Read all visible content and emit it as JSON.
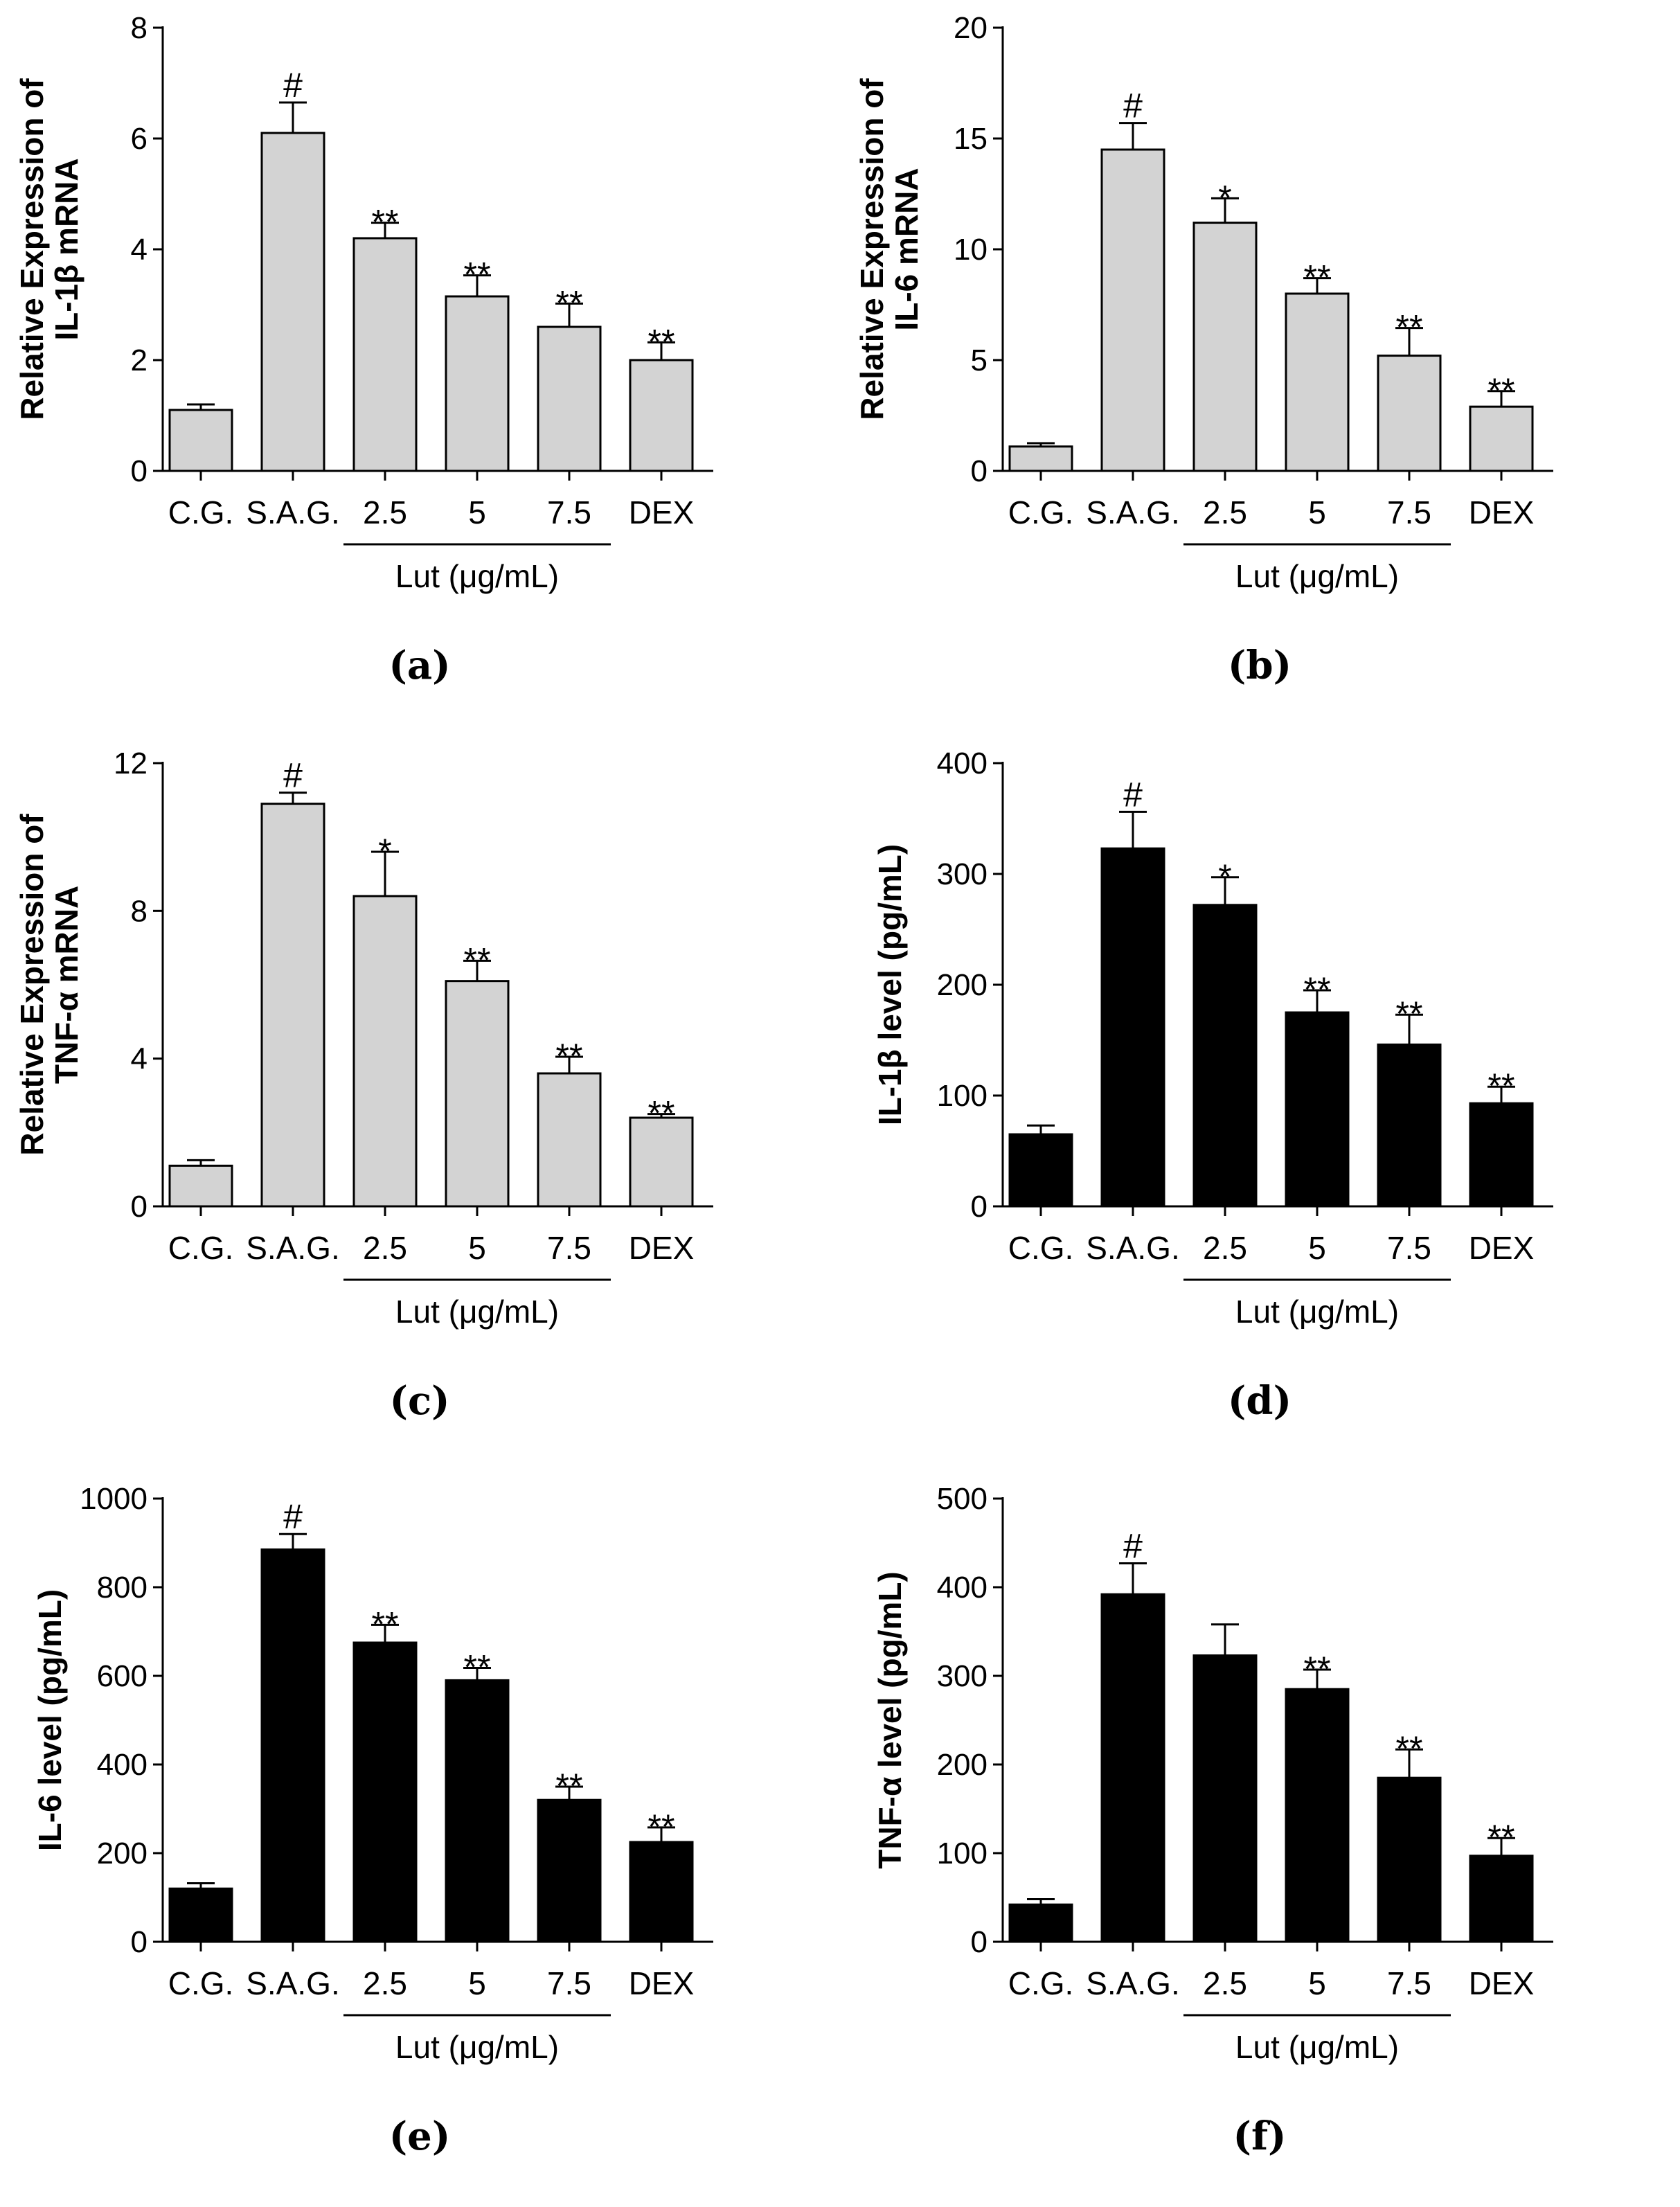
{
  "chart_data": [
    {
      "type": "bar",
      "panel": "(a)",
      "ylabel_lines": [
        "Relative Expression of",
        "IL-1β mRNA"
      ],
      "categories": [
        "C.G.",
        "S.A.G.",
        "2.5",
        "5",
        "7.5",
        "DEX"
      ],
      "group_label": "Lut (μg/mL)",
      "values": [
        1.1,
        6.1,
        4.2,
        3.15,
        2.6,
        2.0
      ],
      "errors": [
        0.1,
        0.55,
        0.28,
        0.38,
        0.42,
        0.32
      ],
      "significance": [
        "",
        "#",
        "**",
        "**",
        "**",
        "**"
      ],
      "yticks": [
        0,
        2,
        4,
        6,
        8
      ],
      "ylim": [
        0,
        8
      ],
      "bar_color": "#d3d3d3"
    },
    {
      "type": "bar",
      "panel": "(b)",
      "ylabel_lines": [
        "Relative Expression of",
        "IL-6 mRNA"
      ],
      "categories": [
        "C.G.",
        "S.A.G.",
        "2.5",
        "5",
        "7.5",
        "DEX"
      ],
      "group_label": "Lut (μg/mL)",
      "values": [
        1.1,
        14.5,
        11.2,
        8.0,
        5.2,
        2.9
      ],
      "errors": [
        0.15,
        1.2,
        1.1,
        0.7,
        1.25,
        0.7
      ],
      "significance": [
        "",
        "#",
        "*",
        "**",
        "**",
        "**"
      ],
      "yticks": [
        0,
        5,
        10,
        15,
        20
      ],
      "ylim": [
        0,
        20
      ],
      "bar_color": "#d3d3d3"
    },
    {
      "type": "bar",
      "panel": "(c)",
      "ylabel_lines": [
        "Relative Expression of",
        "TNF-α mRNA"
      ],
      "categories": [
        "C.G.",
        "S.A.G.",
        "2.5",
        "5",
        "7.5",
        "DEX"
      ],
      "group_label": "Lut (μg/mL)",
      "values": [
        1.1,
        10.9,
        8.4,
        6.1,
        3.6,
        2.4
      ],
      "errors": [
        0.15,
        0.3,
        1.2,
        0.55,
        0.45,
        0.1
      ],
      "significance": [
        "",
        "#",
        "*",
        "**",
        "**",
        "**"
      ],
      "yticks": [
        0,
        4,
        8,
        12
      ],
      "ylim": [
        0,
        12
      ],
      "bar_color": "#d3d3d3"
    },
    {
      "type": "bar",
      "panel": "(d)",
      "ylabel_lines": [
        "IL-1β level (pg/mL)"
      ],
      "categories": [
        "C.G.",
        "S.A.G.",
        "2.5",
        "5",
        "7.5",
        "DEX"
      ],
      "group_label": "Lut (μg/mL)",
      "values": [
        65,
        323,
        272,
        175,
        146,
        93
      ],
      "errors": [
        8,
        33,
        25,
        20,
        27,
        15
      ],
      "significance": [
        "",
        "#",
        "*",
        "**",
        "**",
        "**"
      ],
      "yticks": [
        0,
        100,
        200,
        300,
        400
      ],
      "ylim": [
        0,
        400
      ],
      "bar_color": "#000000"
    },
    {
      "type": "bar",
      "panel": "(e)",
      "ylabel_lines": [
        "IL-6 level (pg/mL)"
      ],
      "categories": [
        "C.G.",
        "S.A.G.",
        "2.5",
        "5",
        "7.5",
        "DEX"
      ],
      "group_label": "Lut (μg/mL)",
      "values": [
        120,
        885,
        675,
        590,
        320,
        225
      ],
      "errors": [
        12,
        35,
        40,
        28,
        30,
        33
      ],
      "significance": [
        "",
        "#",
        "**",
        "**",
        "**",
        "**"
      ],
      "yticks": [
        0,
        200,
        400,
        600,
        800,
        1000
      ],
      "ylim": [
        0,
        1000
      ],
      "bar_color": "#000000"
    },
    {
      "type": "bar",
      "panel": "(f)",
      "ylabel_lines": [
        "TNF-α level (pg/mL)"
      ],
      "categories": [
        "C.G.",
        "S.A.G.",
        "2.5",
        "5",
        "7.5",
        "DEX"
      ],
      "group_label": "Lut (μg/mL)",
      "values": [
        42,
        392,
        323,
        285,
        185,
        97
      ],
      "errors": [
        6,
        35,
        35,
        22,
        32,
        20
      ],
      "significance": [
        "",
        "#",
        "",
        "**",
        "**",
        "**"
      ],
      "yticks": [
        0,
        100,
        200,
        300,
        400,
        500
      ],
      "ylim": [
        0,
        500
      ],
      "bar_color": "#000000"
    }
  ]
}
